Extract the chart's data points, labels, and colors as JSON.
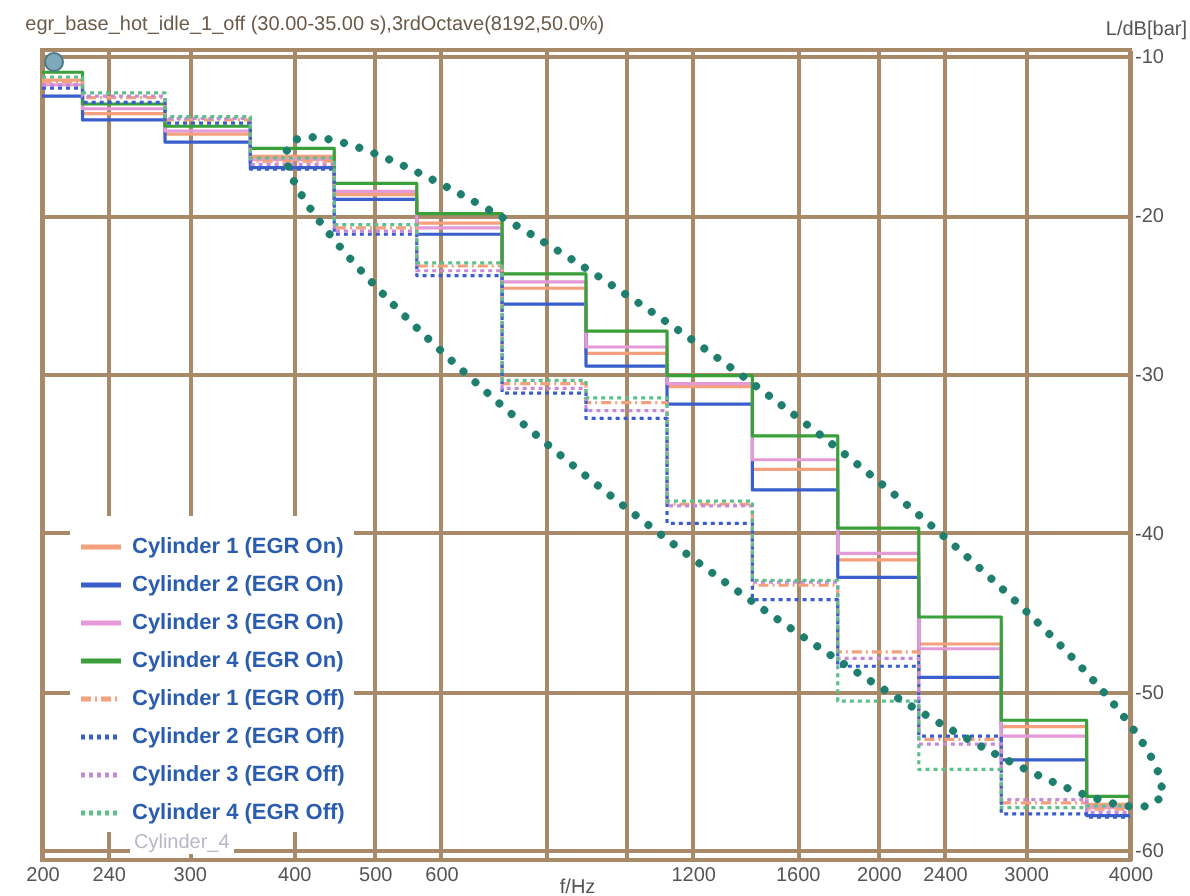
{
  "chart_data": {
    "type": "step",
    "title": "egr_base_hot_idle_1_off (30.00-35.00 s),3rdOctave(8192,50.0%)",
    "xlabel": "f/Hz",
    "ylabel": "L/dB[bar]",
    "log": "x",
    "grid": true,
    "legend": "bottom left",
    "marker": "none",
    "annotations": [
      "Cylinder_4"
    ],
    "x": [
      200,
      250,
      315,
      400,
      500,
      630,
      800,
      1000,
      1250,
      1600,
      2000,
      2500,
      3150,
      4000
    ],
    "xlim": [
      200,
      4000
    ],
    "xticks": [
      200,
      240,
      300,
      400,
      500,
      600,
      {
        "value": 800,
        "label": null
      },
      {
        "value": 1000,
        "label": null
      },
      1200,
      1600,
      2000,
      2400,
      3000,
      4000
    ],
    "ylim": [
      -60.6,
      -9.6
    ],
    "yticks": [
      -10,
      -20,
      -30,
      -40,
      -50,
      -60
    ],
    "series": [
      {
        "name": "Cylinder 1 (EGR On)",
        "color": "#f4a07c",
        "line_style": "solid",
        "values": [
          -11.5,
          -13.6,
          -14.9,
          -16.3,
          -18.7,
          -20.5,
          -24.6,
          -28.7,
          -30.8,
          -36.0,
          -41.7,
          -47.0,
          -52.2,
          -57.1
        ]
      },
      {
        "name": "Cylinder 2 (EGR On)",
        "color": "#3a5fcd",
        "line_style": "solid",
        "values": [
          -12.5,
          -14.0,
          -15.4,
          -17.0,
          -19.0,
          -21.2,
          -25.6,
          -29.5,
          -31.9,
          -37.3,
          -42.8,
          -49.1,
          -54.3,
          -57.8
        ]
      },
      {
        "name": "Cylinder 3 (EGR On)",
        "color": "#e49ad6",
        "line_style": "solid",
        "values": [
          -11.8,
          -13.3,
          -14.7,
          -16.5,
          -18.5,
          -20.8,
          -24.2,
          -28.3,
          -30.6,
          -35.4,
          -41.3,
          -47.3,
          -52.8,
          -57.3
        ]
      },
      {
        "name": "Cylinder 4 (EGR On)",
        "color": "#3aa03a",
        "line_style": "solid",
        "values": [
          -11.0,
          -13.0,
          -14.4,
          -15.8,
          -18.0,
          -19.9,
          -23.7,
          -27.3,
          -30.1,
          -33.9,
          -39.7,
          -45.3,
          -51.8,
          -56.6
        ]
      },
      {
        "name": "Cylinder 1 (EGR Off)",
        "color": "#f4a07c",
        "line_style": "dashed",
        "values": [
          -11.6,
          -12.6,
          -14.0,
          -16.6,
          -20.8,
          -23.2,
          -30.6,
          -31.8,
          -38.2,
          -43.3,
          -47.5,
          -53.0,
          -57.0,
          -57.4
        ]
      },
      {
        "name": "Cylinder 2 (EGR Off)",
        "color": "#3a5fcd",
        "line_style": "dotted",
        "values": [
          -12.0,
          -12.9,
          -14.2,
          -17.1,
          -21.2,
          -23.8,
          -31.2,
          -32.8,
          -39.4,
          -44.2,
          -48.4,
          -52.8,
          -57.7,
          -57.9
        ]
      },
      {
        "name": "Cylinder 3 (EGR Off)",
        "color": "#c58ad8",
        "line_style": "dotted",
        "values": [
          -11.8,
          -12.5,
          -13.9,
          -16.8,
          -21.0,
          -23.5,
          -30.9,
          -32.3,
          -38.3,
          -43.1,
          -47.9,
          -53.3,
          -56.8,
          -57.6
        ]
      },
      {
        "name": "Cylinder 4 (EGR Off)",
        "color": "#5cc08a",
        "line_style": "dotted",
        "values": [
          -11.3,
          -12.3,
          -13.8,
          -16.4,
          -20.6,
          -23.0,
          -30.4,
          -31.5,
          -38.0,
          -43.0,
          -50.6,
          -54.9,
          -57.3,
          -57.2
        ]
      }
    ]
  }
}
